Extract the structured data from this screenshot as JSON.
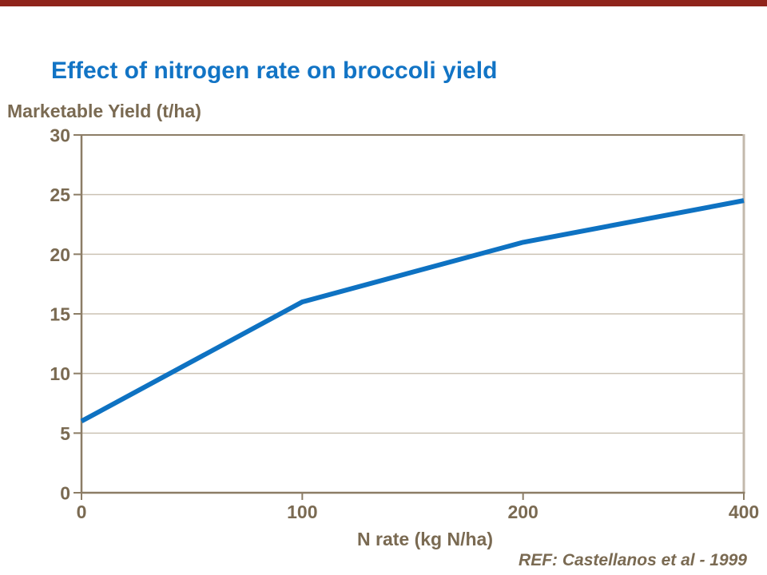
{
  "slide": {
    "reference": "REF: Castellanos et al - 1999"
  },
  "chart_data": {
    "type": "line",
    "title": "Effect of nitrogen rate on broccoli yield",
    "xlabel": "N rate (kg N/ha)",
    "ylabel": "Marketable Yield (t/ha)",
    "categories": [
      "0",
      "100",
      "200",
      "400"
    ],
    "values": [
      6,
      16,
      21,
      24.5
    ],
    "series_name": "Marketable yield",
    "ylim": [
      0,
      30
    ],
    "yticks": [
      0,
      5,
      10,
      15,
      20,
      25,
      30
    ],
    "grid": "horizontal",
    "legend": "none",
    "x_spacing": "equal-category-spacing"
  },
  "colors": {
    "background": "#FFFFFF",
    "top_bar_red": "#8F241B",
    "title_blue": "#1274C5",
    "line_blue": "#0E72C2",
    "label_brown": "#7A6A52",
    "axis_brown": "#8C7D66",
    "grid_tan": "#CBC2B4",
    "frame_tan": "#C3B9AC"
  }
}
